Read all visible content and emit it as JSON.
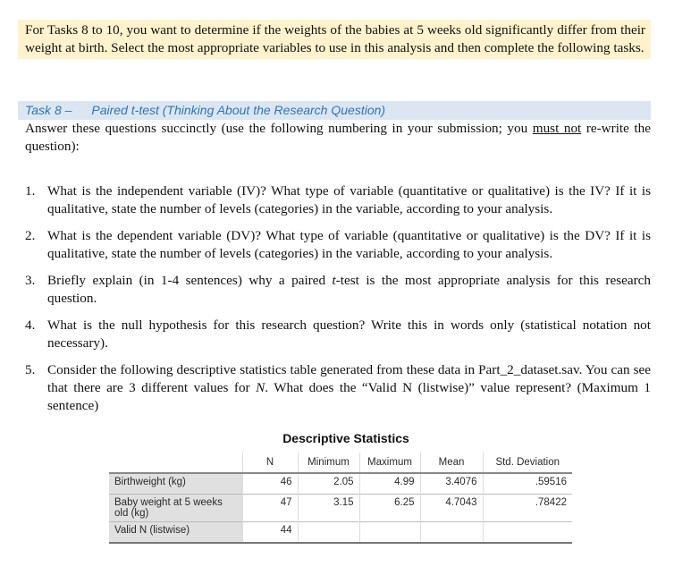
{
  "intro": "For Tasks 8 to 10, you want to determine if the weights of the babies at 5 weeks old significantly differ from their weight at birth. Select the most appropriate variables to use in this analysis and then complete the following tasks.",
  "task": {
    "number": "Task 8 –",
    "title": "Paired t-test (Thinking About the Research Question)"
  },
  "answer": {
    "before": "Answer these questions succinctly (use the following numbering in your submission; you ",
    "underlined": "must not",
    "after": " re-write the question):"
  },
  "questions": [
    {
      "num": "1.",
      "text": "What is the independent variable (IV)? What type of variable (quantitative or qualitative) is the IV? If it is qualitative, state the number of levels (categories) in the variable, according to your analysis."
    },
    {
      "num": "2.",
      "text": "What is the dependent variable (DV)? What type of variable (quantitative or qualitative) is the DV? If it is qualitative, state the number of levels (categories) in the variable, according to your analysis."
    },
    {
      "num": "3.",
      "before": "Briefly explain (in 1-4 sentences) why a paired ",
      "italic": "t",
      "after": "-test is the most appropriate analysis for this research question."
    },
    {
      "num": "4.",
      "text": "What is the null hypothesis for this research question? Write this in words only (statistical notation not necessary)."
    },
    {
      "num": "5.",
      "before": "Consider the following descriptive statistics table generated from these data in Part_2_dataset.sav. You can see that there are 3 different values for ",
      "italic": "N",
      "after": ". What does the “Valid N (listwise)” value represent? (Maximum 1 sentence)"
    }
  ],
  "table": {
    "title": "Descriptive Statistics",
    "headers": [
      "",
      "N",
      "Minimum",
      "Maximum",
      "Mean",
      "Std. Deviation"
    ],
    "rows": [
      [
        "Birthweight (kg)",
        "46",
        "2.05",
        "4.99",
        "3.4076",
        ".59516"
      ],
      [
        "Baby weight at 5 weeks old (kg)",
        "47",
        "3.15",
        "6.25",
        "4.7043",
        ".78422"
      ],
      [
        "Valid N (listwise)",
        "44",
        "",
        "",
        "",
        ""
      ]
    ]
  }
}
